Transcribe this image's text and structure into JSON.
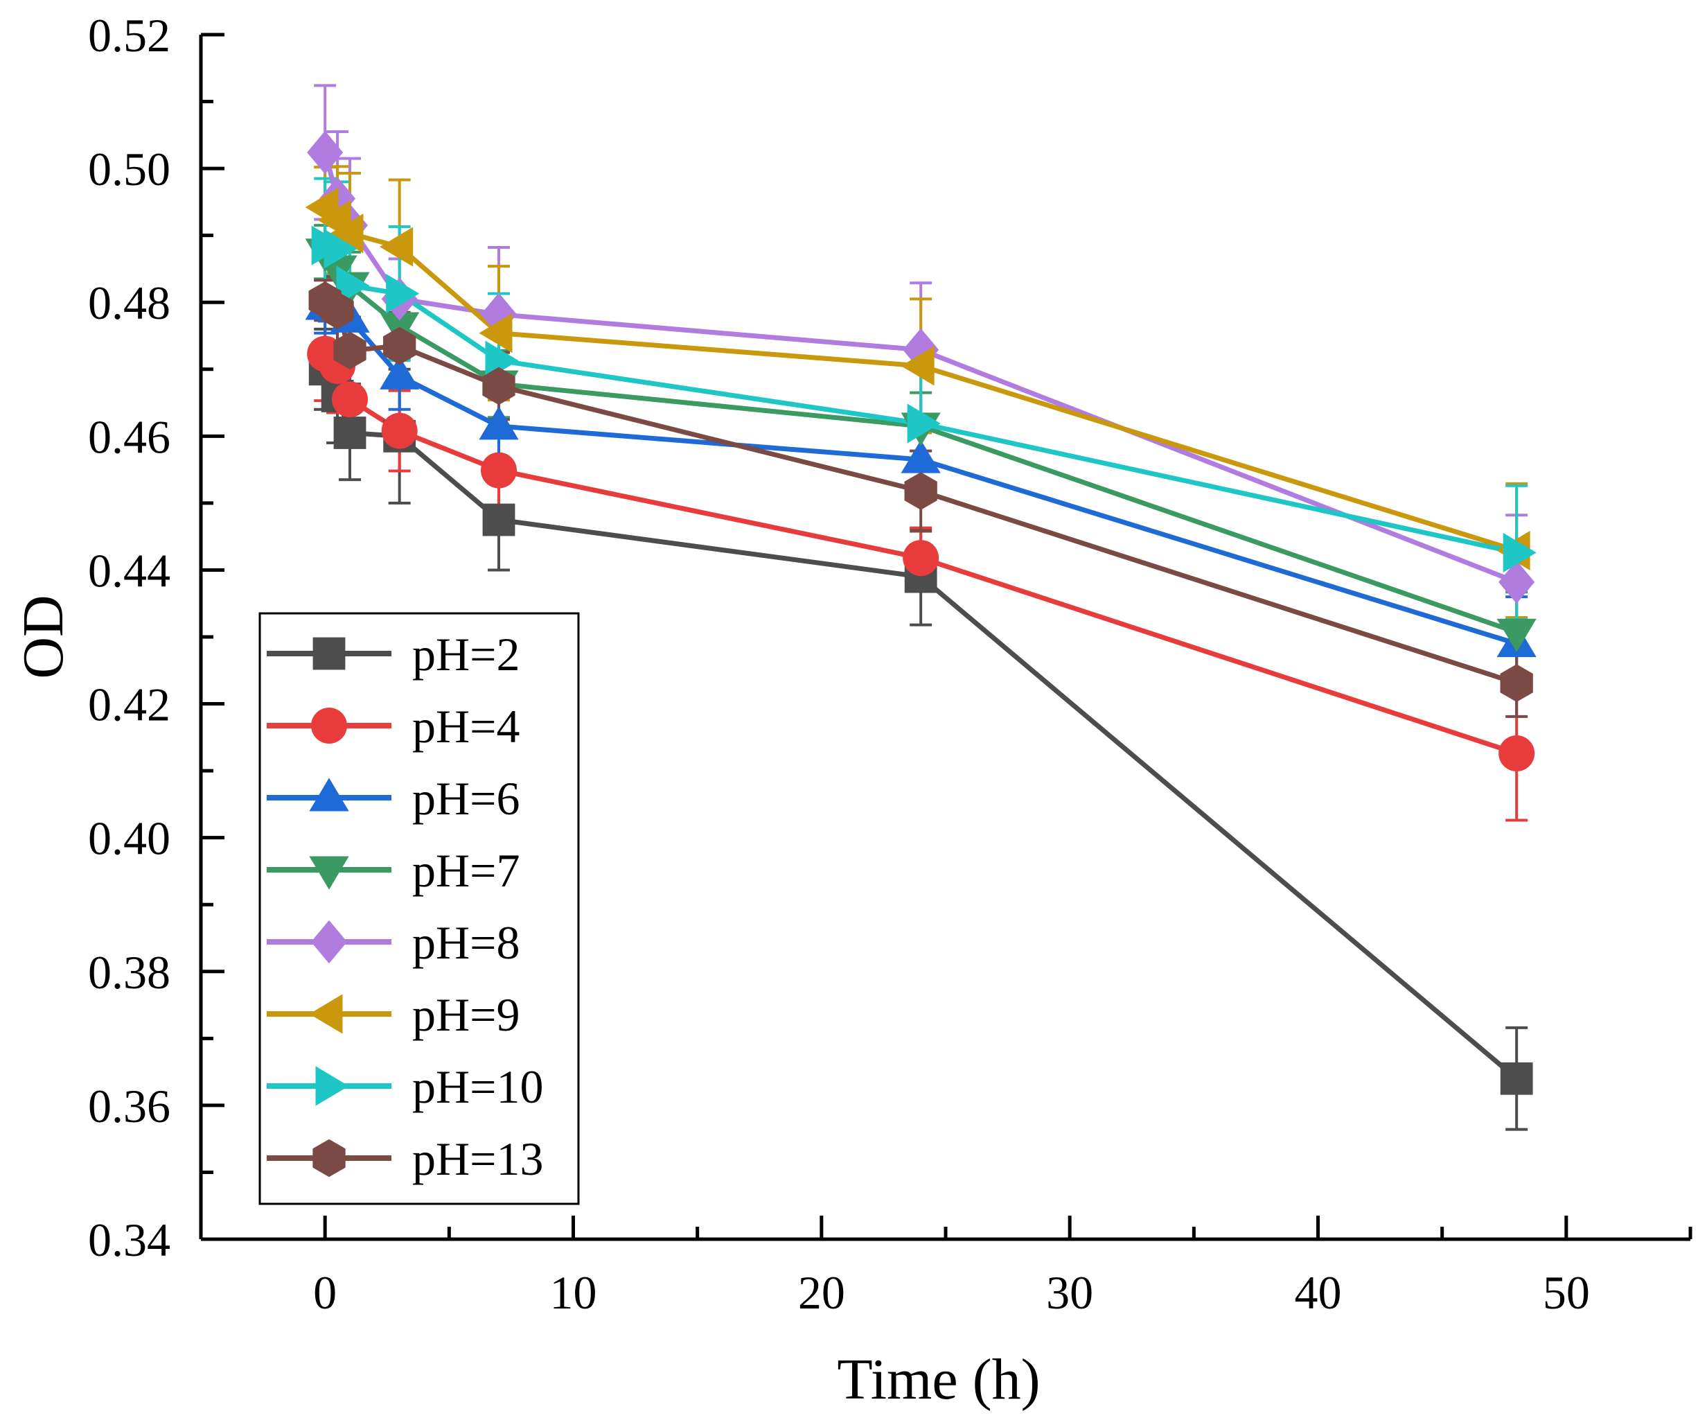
{
  "chart_data": {
    "type": "line",
    "title": "",
    "xlabel": "Time (h)",
    "ylabel": "OD",
    "xlim": [
      -5,
      55
    ],
    "ylim": [
      0.34,
      0.52
    ],
    "x_ticks": [
      0,
      10,
      20,
      30,
      40,
      50
    ],
    "y_ticks": [
      0.34,
      0.36,
      0.38,
      0.4,
      0.42,
      0.44,
      0.46,
      0.48,
      0.5,
      0.52
    ],
    "x_tick_labels": [
      "0",
      "10",
      "20",
      "30",
      "40",
      "50"
    ],
    "y_tick_labels": [
      "0.34",
      "0.36",
      "0.38",
      "0.40",
      "0.42",
      "0.44",
      "0.46",
      "0.48",
      "0.50",
      "0.52"
    ],
    "legend_position": "bottom-left",
    "grid": false,
    "x": [
      0,
      0.5,
      1,
      3,
      7,
      24,
      48
    ],
    "series": [
      {
        "name": "pH=2",
        "color": "#4d4d4d",
        "marker": "square",
        "values": [
          0.47,
          0.466,
          0.4605,
          0.46,
          0.4475,
          0.439,
          0.364
        ],
        "errors": [
          0.006,
          0.007,
          0.007,
          0.01,
          0.0075,
          0.0072,
          0.0076
        ]
      },
      {
        "name": "pH=4",
        "color": "#e83c3c",
        "marker": "circle",
        "values": [
          0.4723,
          0.4705,
          0.4655,
          0.4608,
          0.4549,
          0.4418,
          0.4126
        ],
        "errors": [
          0.007,
          0.007,
          0.007,
          0.006,
          0.006,
          0.0045,
          0.01
        ]
      },
      {
        "name": "pH=6",
        "color": "#1e6ad6",
        "marker": "triangle-up",
        "values": [
          0.4794,
          0.479,
          0.4775,
          0.469,
          0.4615,
          0.4565,
          0.429
        ],
        "errors": [
          0.004,
          0.005,
          0.005,
          0.005,
          0.006,
          0.005,
          0.007
        ]
      },
      {
        "name": "pH=7",
        "color": "#3a9a62",
        "marker": "triangle-down",
        "values": [
          0.4875,
          0.485,
          0.4825,
          0.4765,
          0.4678,
          0.4615,
          0.4307
        ],
        "errors": [
          0.004,
          0.005,
          0.005,
          0.005,
          0.005,
          0.005,
          0.006
        ]
      },
      {
        "name": "pH=8",
        "color": "#b07ce0",
        "marker": "diamond",
        "values": [
          0.5024,
          0.4955,
          0.4915,
          0.4805,
          0.4782,
          0.4729,
          0.4382
        ],
        "errors": [
          0.01,
          0.01,
          0.01,
          0.006,
          0.01,
          0.01,
          0.01
        ]
      },
      {
        "name": "pH=9",
        "color": "#c9980c",
        "marker": "triangle-left",
        "values": [
          0.4942,
          0.4923,
          0.4903,
          0.4883,
          0.4754,
          0.4705,
          0.4429
        ],
        "errors": [
          0.006,
          0.008,
          0.009,
          0.01,
          0.01,
          0.01,
          0.01
        ]
      },
      {
        "name": "pH=10",
        "color": "#1ec6c6",
        "marker": "triangle-right",
        "values": [
          0.4885,
          0.488,
          0.4825,
          0.4813,
          0.4713,
          0.4619,
          0.4426
        ],
        "errors": [
          0.01,
          0.01,
          0.01,
          0.01,
          0.01,
          0.01,
          0.01
        ]
      },
      {
        "name": "pH=13",
        "color": "#7b4a44",
        "marker": "hexagon",
        "values": [
          0.4803,
          0.4788,
          0.4728,
          0.4735,
          0.4675,
          0.4518,
          0.4231
        ],
        "errors": [
          0.003,
          0.005,
          0.005,
          0.005,
          0.005,
          0.006,
          0.005
        ]
      }
    ]
  }
}
